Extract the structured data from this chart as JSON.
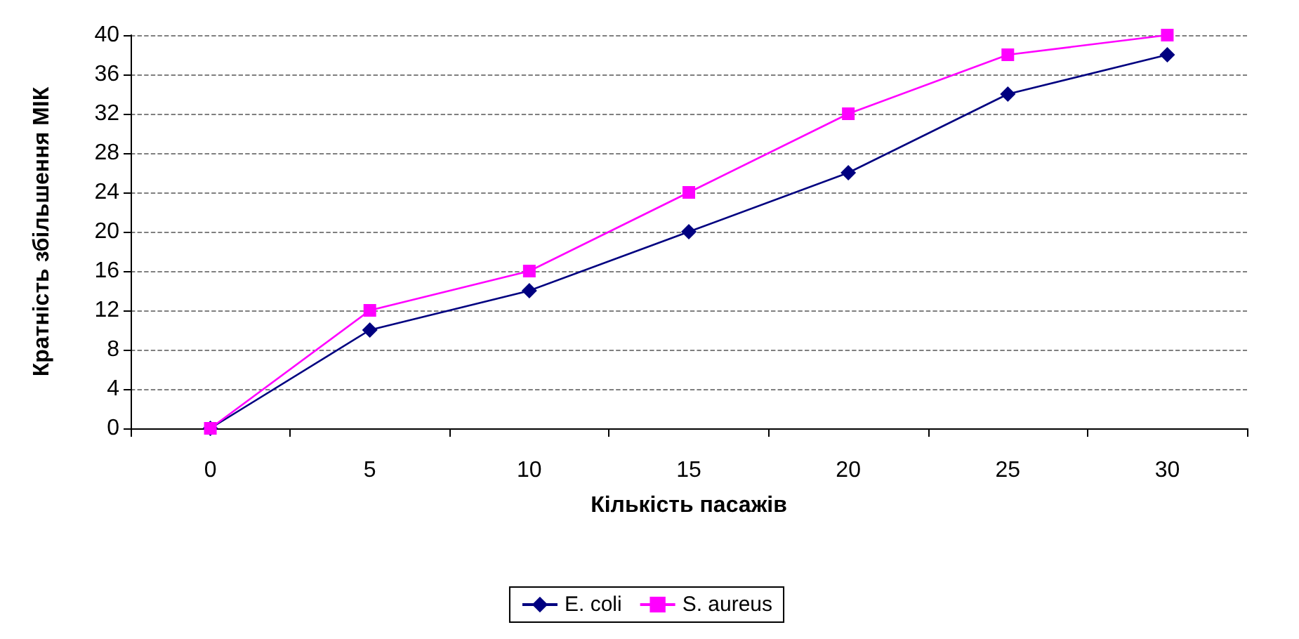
{
  "chart_data": {
    "type": "line",
    "xlabel": "Кількість пасажів",
    "ylabel": "Кратність збільшення МІК",
    "categories": [
      "0",
      "5",
      "10",
      "15",
      "20",
      "25",
      "30"
    ],
    "series": [
      {
        "name": "E. coli",
        "color": "#000080",
        "marker": "diamond",
        "values": [
          0,
          10,
          14,
          20,
          26,
          34,
          38
        ]
      },
      {
        "name": "S. aureus",
        "color": "#ff00ff",
        "marker": "square",
        "values": [
          0,
          12,
          16,
          24,
          32,
          38,
          40
        ]
      }
    ],
    "ylim": [
      0,
      40
    ],
    "yticks": [
      0,
      4,
      8,
      12,
      16,
      20,
      24,
      28,
      32,
      36,
      40
    ],
    "grid": "y",
    "legend": "bottom",
    "line_style": "solid"
  }
}
